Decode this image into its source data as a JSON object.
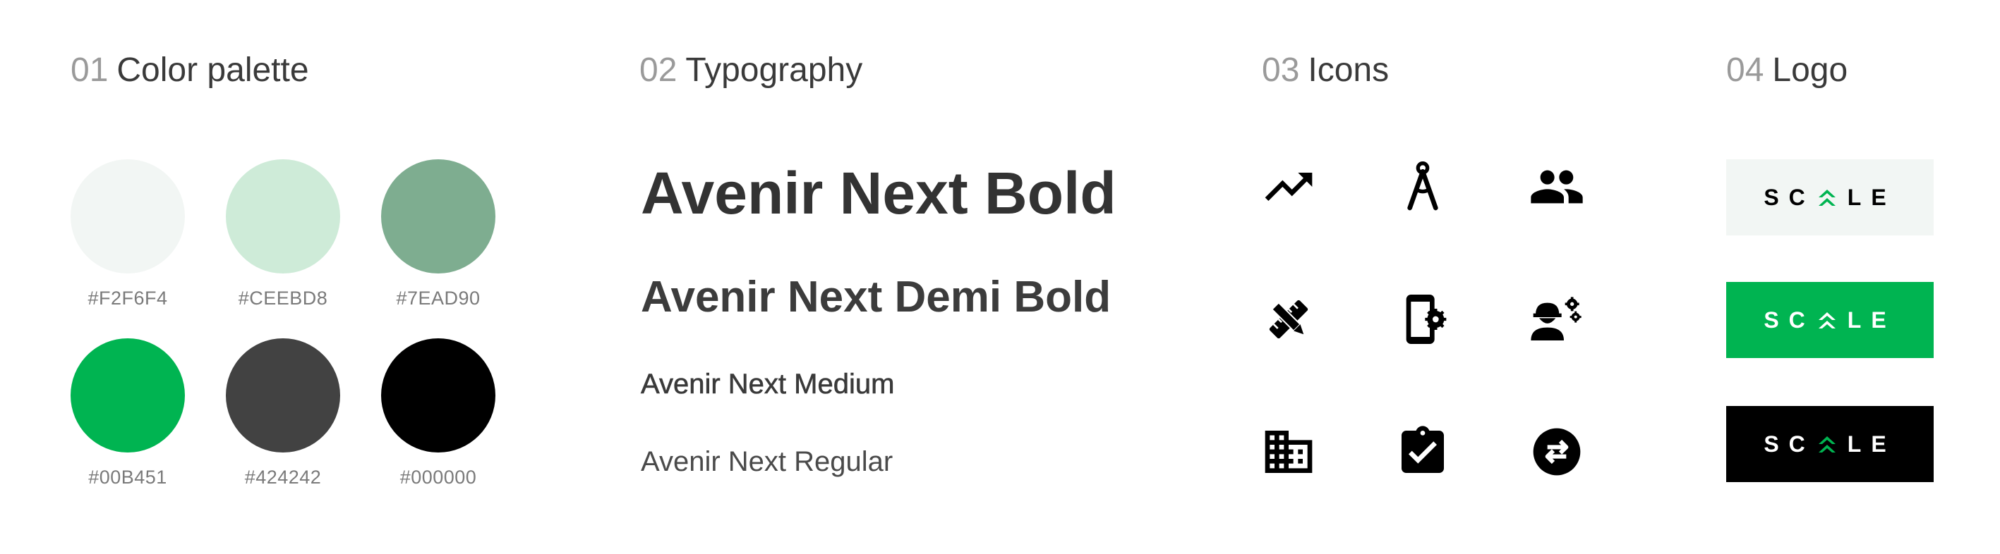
{
  "sections": {
    "colors": {
      "num": "01",
      "title": "Color palette"
    },
    "typography": {
      "num": "02",
      "title": "Typography"
    },
    "icons": {
      "num": "03",
      "title": "Icons"
    },
    "logo": {
      "num": "04",
      "title": "Logo"
    }
  },
  "palette": [
    {
      "hex": "#F2F6F4",
      "color": "#F2F6F4"
    },
    {
      "hex": "#CEEBD8",
      "color": "#CEEBD8"
    },
    {
      "hex": "#7EAD90",
      "color": "#7EAD90"
    },
    {
      "hex": "#00B451",
      "color": "#00B451"
    },
    {
      "hex": "#424242",
      "color": "#424242"
    },
    {
      "hex": "#000000",
      "color": "#000000"
    }
  ],
  "typography": {
    "bold": "Avenir Next Bold",
    "demi": "Avenir Next Demi Bold",
    "medium": "Avenir Next Medium",
    "regular": "Avenir Next Regular"
  },
  "icons": [
    "trending-up-icon",
    "compass-drafting-icon",
    "people-icon",
    "pencil-ruler-icon",
    "phone-settings-icon",
    "engineer-settings-icon",
    "building-icon",
    "clipboard-check-icon",
    "swap-arrows-icon"
  ],
  "logo": {
    "left": "SC",
    "right": "LE",
    "variants": [
      {
        "bg": "#F2F6F4",
        "fg": "#000000"
      },
      {
        "bg": "#00B451",
        "fg": "#ffffff"
      },
      {
        "bg": "#000000",
        "fg": "#ffffff"
      }
    ]
  }
}
